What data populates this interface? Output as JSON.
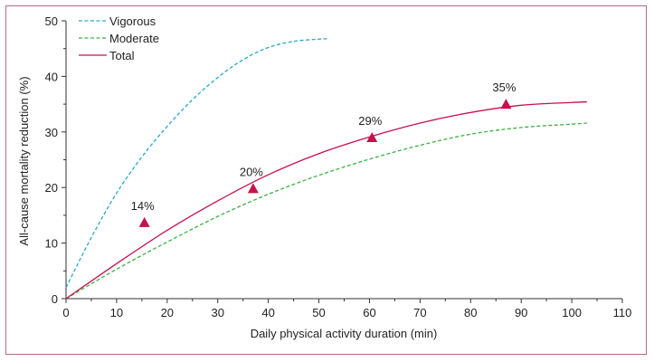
{
  "chart_data": {
    "type": "line",
    "title": "",
    "xlabel": "Daily physical activity duration (min)",
    "ylabel": "All-cause mortality reduction (%)",
    "xlim": [
      0,
      110
    ],
    "ylim": [
      0,
      50
    ],
    "xticks": [
      "0",
      "10",
      "20",
      "30",
      "40",
      "50",
      "60",
      "70",
      "80",
      "90",
      "100",
      "110"
    ],
    "yticks": [
      "0",
      "10",
      "20",
      "30",
      "40",
      "50"
    ],
    "grid": false,
    "legend_position": "top-left",
    "series": [
      {
        "name": "Vigorous",
        "style": "dashed",
        "color": "#2aa7c9",
        "x": [
          0,
          5,
          10,
          15,
          20,
          25,
          30,
          35,
          40,
          45,
          50,
          52
        ],
        "y": [
          2,
          11,
          19,
          25.5,
          31,
          35.8,
          39.8,
          43,
          45.2,
          46.3,
          46.7,
          46.8
        ]
      },
      {
        "name": "Moderate",
        "style": "dashed",
        "color": "#3cb043",
        "x": [
          0,
          10,
          20,
          30,
          40,
          50,
          60,
          70,
          80,
          90,
          100,
          103
        ],
        "y": [
          0,
          5.3,
          10.2,
          14.8,
          18.8,
          22.2,
          25.1,
          27.6,
          29.6,
          30.8,
          31.4,
          31.6
        ]
      },
      {
        "name": "Total",
        "style": "solid",
        "color": "#c8104a",
        "x": [
          0,
          10,
          20,
          30,
          40,
          50,
          60,
          70,
          80,
          90,
          100,
          103
        ],
        "y": [
          0,
          6.3,
          12.3,
          17.6,
          22.3,
          26.1,
          29.1,
          31.6,
          33.5,
          34.8,
          35.3,
          35.4
        ]
      }
    ],
    "markers": {
      "shape": "triangle",
      "color": "#c8104a",
      "points": [
        {
          "x": 15.5,
          "y": 13.7,
          "label": "14%"
        },
        {
          "x": 37,
          "y": 19.8,
          "label": "20%"
        },
        {
          "x": 60.5,
          "y": 29,
          "label": "29%"
        },
        {
          "x": 87,
          "y": 35,
          "label": "35%"
        }
      ]
    }
  }
}
